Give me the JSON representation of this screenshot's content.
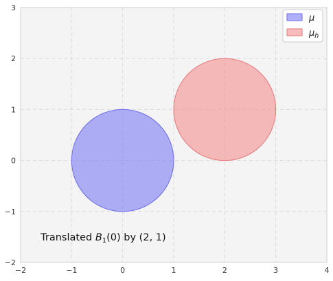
{
  "chart_data": {
    "type": "scatter",
    "title": "",
    "xlabel": "",
    "ylabel": "",
    "xlim": [
      -2,
      4
    ],
    "ylim": [
      -2,
      3
    ],
    "xticks": [
      -2,
      -1,
      0,
      1,
      2,
      3,
      4
    ],
    "yticks": [
      -2,
      -1,
      0,
      1,
      2,
      3
    ],
    "xtick_labels": [
      "−2",
      "−1",
      "0",
      "1",
      "2",
      "3",
      "4"
    ],
    "ytick_labels": [
      "−2",
      "−1",
      "0",
      "1",
      "2",
      "3"
    ],
    "grid": true,
    "legend_position": "top-right",
    "series": [
      {
        "name": "μ",
        "shape": "disk",
        "center": [
          0,
          0
        ],
        "radius": 1,
        "color": "#7b7bf5",
        "edge_color": "#6b6bea"
      },
      {
        "name": "μ_h",
        "shape": "disk",
        "center": [
          2,
          1
        ],
        "radius": 1,
        "color": "#f48f8f",
        "edge_color": "#e87777"
      }
    ],
    "legend": [
      {
        "label_main": "μ",
        "label_sub": ""
      },
      {
        "label_main": "μ",
        "label_sub": "h"
      }
    ],
    "annotation": {
      "text_before": "Translated ",
      "text_b": "B",
      "text_sub": "1",
      "text_after": "(0) by (2, 1)",
      "x": -1.5,
      "y": -1.5
    }
  }
}
